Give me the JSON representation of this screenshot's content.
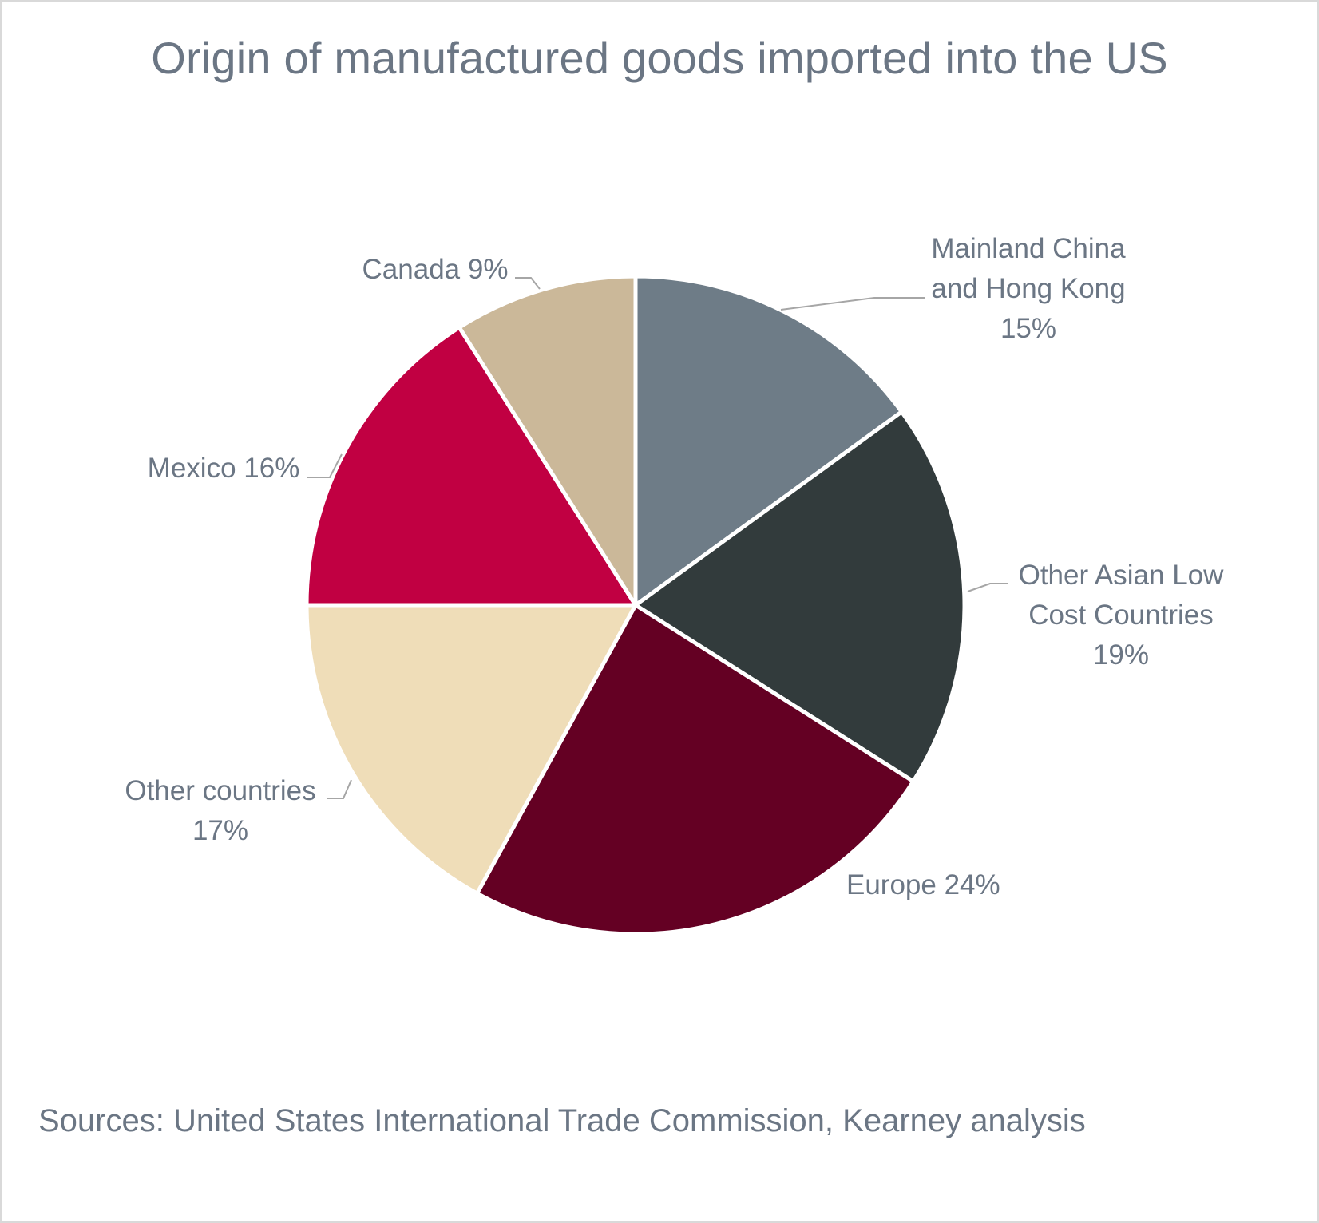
{
  "chart_data": {
    "type": "pie",
    "title": "Origin of manufactured goods imported into the US",
    "start_angle_deg": 0,
    "direction": "clockwise",
    "slices": [
      {
        "label": "Mainland China and Hong Kong",
        "label_lines": [
          "Mainland China",
          "and Hong Kong",
          "15%"
        ],
        "value": 15,
        "color": "#6e7c87"
      },
      {
        "label": "Other Asian Low Cost Countries",
        "label_lines": [
          "Other Asian Low",
          "Cost Countries",
          "19%"
        ],
        "value": 19,
        "color": "#323b3c"
      },
      {
        "label": "Europe",
        "label_lines": [
          "Europe 24%"
        ],
        "value": 24,
        "color": "#640023"
      },
      {
        "label": "Other countries",
        "label_lines": [
          "Other countries",
          "17%"
        ],
        "value": 17,
        "color": "#efddb8"
      },
      {
        "label": "Mexico",
        "label_lines": [
          "Mexico 16%"
        ],
        "value": 16,
        "color": "#c10042"
      },
      {
        "label": "Canada",
        "label_lines": [
          "Canada 9%"
        ],
        "value": 9,
        "color": "#cbb899"
      }
    ],
    "source": "Sources: United States International Trade Commission, Kearney analysis"
  }
}
